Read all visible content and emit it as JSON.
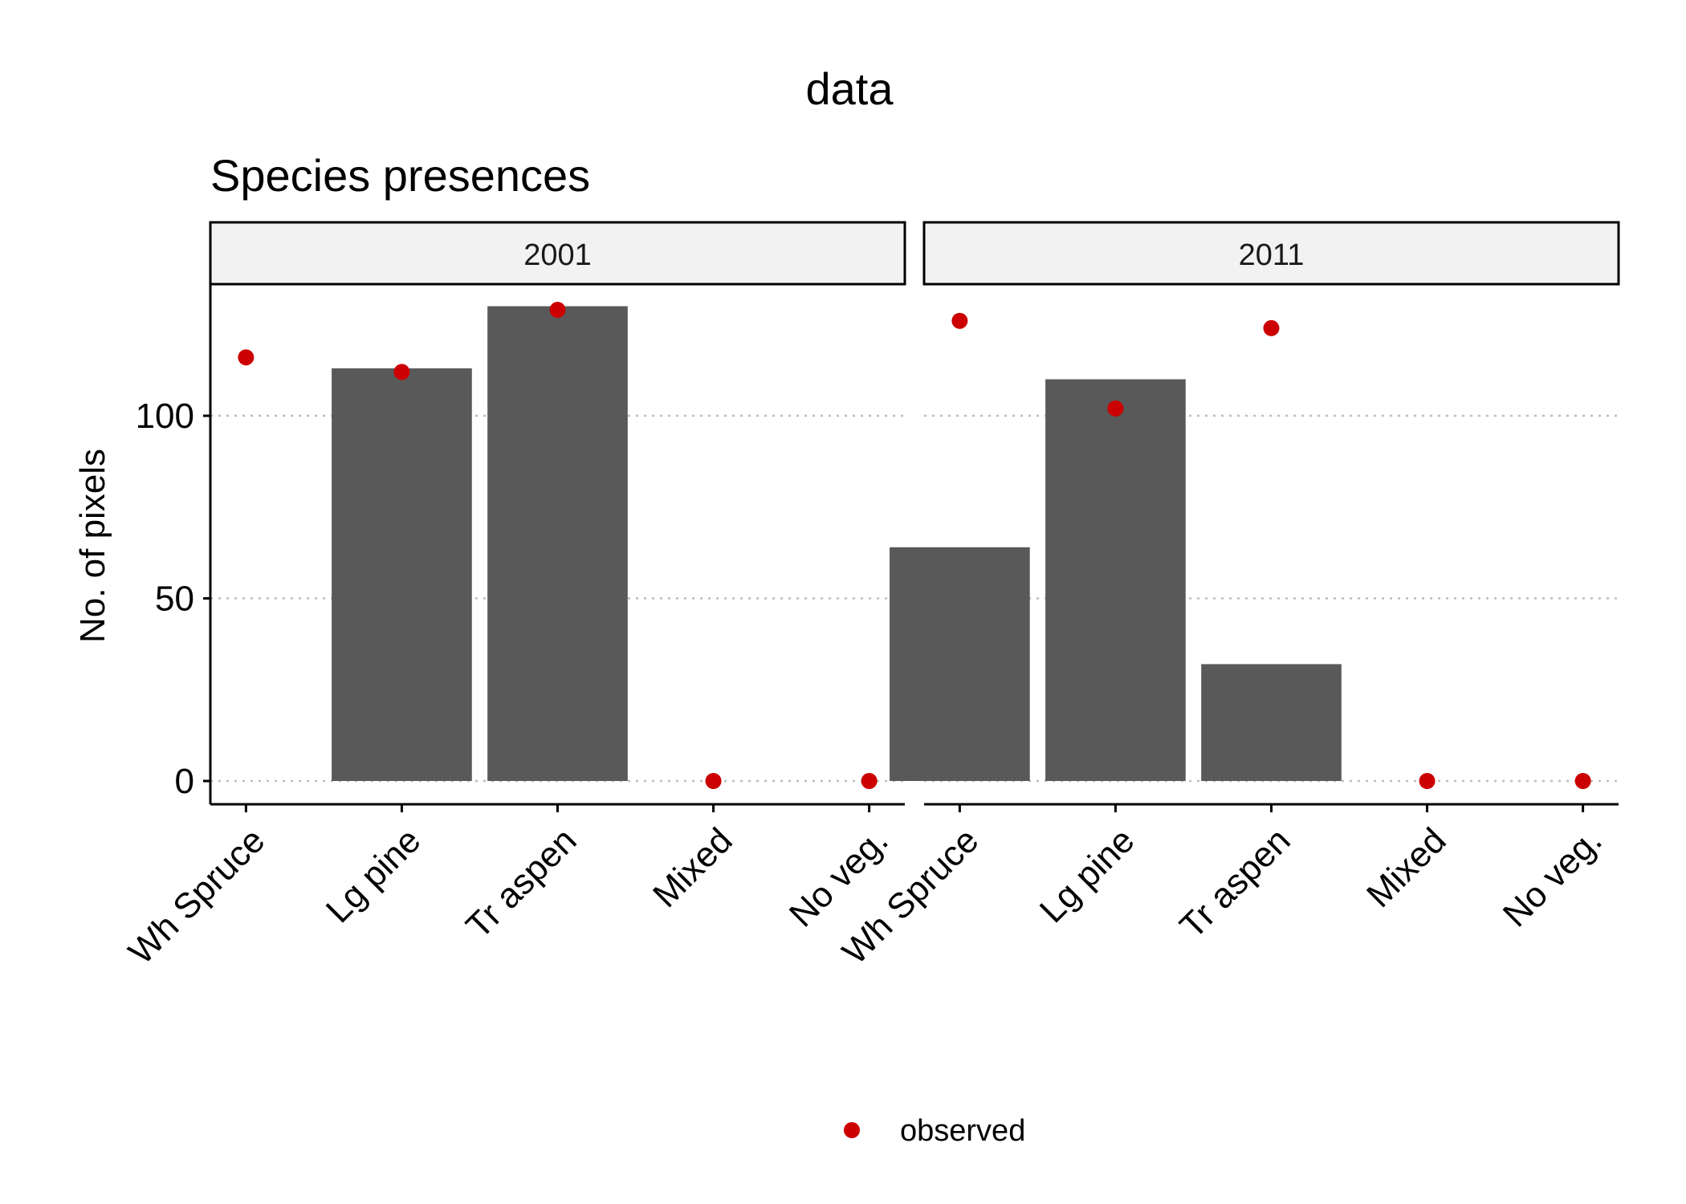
{
  "chart_data": {
    "type": "bar",
    "title": "data",
    "subtitle": "Species presences",
    "ylabel": "No. of pixels",
    "xlabel": "",
    "ylim": [
      0,
      140
    ],
    "yticks": [
      0,
      50,
      100
    ],
    "grid": "horizontal-dotted",
    "legend_position": "bottom",
    "categories": [
      "Wh Spruce",
      "Lg pine",
      "Tr aspen",
      "Mixed",
      "No veg."
    ],
    "series": [
      {
        "values_by_panel": "bars"
      },
      {
        "name": "observed",
        "marker": "point"
      }
    ],
    "panels": [
      {
        "label": "2001",
        "bars": [
          0,
          113,
          130,
          0,
          0
        ],
        "observed": [
          116,
          112,
          129,
          0,
          0
        ]
      },
      {
        "label": "2011",
        "bars": [
          64,
          110,
          32,
          0,
          0
        ],
        "observed": [
          126,
          102,
          124,
          0,
          0
        ]
      }
    ],
    "legend": [
      {
        "label": "observed"
      }
    ],
    "colors": {
      "bar": "#595959",
      "observed": "#cc0000",
      "strip_fill": "#f2f2f2",
      "grid": "#bdbdbd"
    }
  }
}
